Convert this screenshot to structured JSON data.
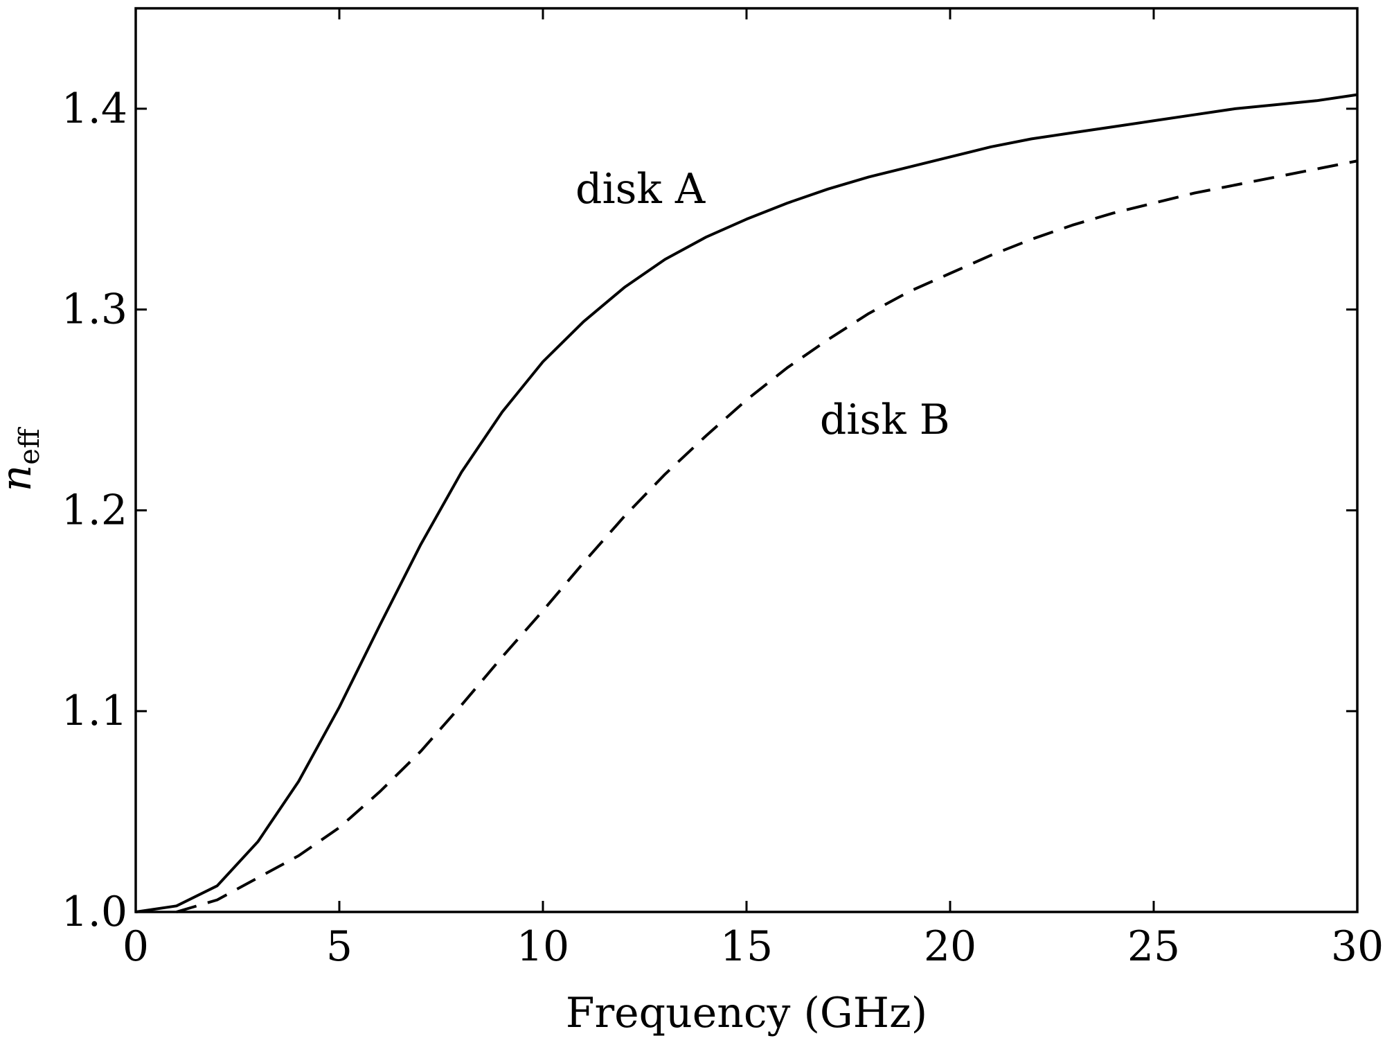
{
  "chart_data": {
    "type": "line",
    "title": "",
    "xlabel": "Frequency (GHz)",
    "ylabel": {
      "base": "n",
      "subscript": "eff"
    },
    "xlim": [
      0,
      30
    ],
    "ylim": [
      1.0,
      1.45
    ],
    "xticks": [
      0,
      5,
      10,
      15,
      20,
      25,
      30
    ],
    "xtick_labels": [
      "0",
      "5",
      "10",
      "15",
      "20",
      "25",
      "30"
    ],
    "yticks": [
      1.0,
      1.1,
      1.2,
      1.3,
      1.4
    ],
    "ytick_labels": [
      "1.0",
      "1.1",
      "1.2",
      "1.3",
      "1.4"
    ],
    "grid": false,
    "legend": "none",
    "series": [
      {
        "style": "solid",
        "color": "#000000",
        "x": [
          0,
          1,
          2,
          3,
          4,
          5,
          6,
          7,
          8,
          9,
          10,
          11,
          12,
          13,
          14,
          15,
          16,
          17,
          18,
          19,
          20,
          21,
          22,
          23,
          24,
          25,
          26,
          27,
          28,
          29,
          30
        ],
        "y": [
          1.0,
          1.003,
          1.013,
          1.035,
          1.065,
          1.102,
          1.143,
          1.183,
          1.219,
          1.249,
          1.274,
          1.294,
          1.311,
          1.325,
          1.336,
          1.345,
          1.353,
          1.36,
          1.366,
          1.371,
          1.376,
          1.381,
          1.385,
          1.388,
          1.391,
          1.394,
          1.397,
          1.4,
          1.402,
          1.404,
          1.407
        ]
      },
      {
        "style": "dashed",
        "color": "#000000",
        "x": [
          1,
          2,
          3,
          4,
          5,
          6,
          7,
          8,
          9,
          10,
          11,
          12,
          13,
          14,
          15,
          16,
          17,
          18,
          19,
          20,
          21,
          22,
          23,
          24,
          25,
          26,
          27,
          28,
          29,
          30
        ],
        "y": [
          1.0,
          1.006,
          1.017,
          1.028,
          1.042,
          1.06,
          1.08,
          1.103,
          1.127,
          1.15,
          1.174,
          1.197,
          1.218,
          1.237,
          1.255,
          1.271,
          1.285,
          1.298,
          1.309,
          1.318,
          1.327,
          1.335,
          1.342,
          1.348,
          1.353,
          1.358,
          1.362,
          1.366,
          1.37,
          1.374
        ]
      }
    ],
    "annotations": [
      {
        "text": "disk A",
        "x": 10.8,
        "y": 1.36
      },
      {
        "text": "disk B",
        "x": 16.8,
        "y": 1.245
      }
    ]
  }
}
